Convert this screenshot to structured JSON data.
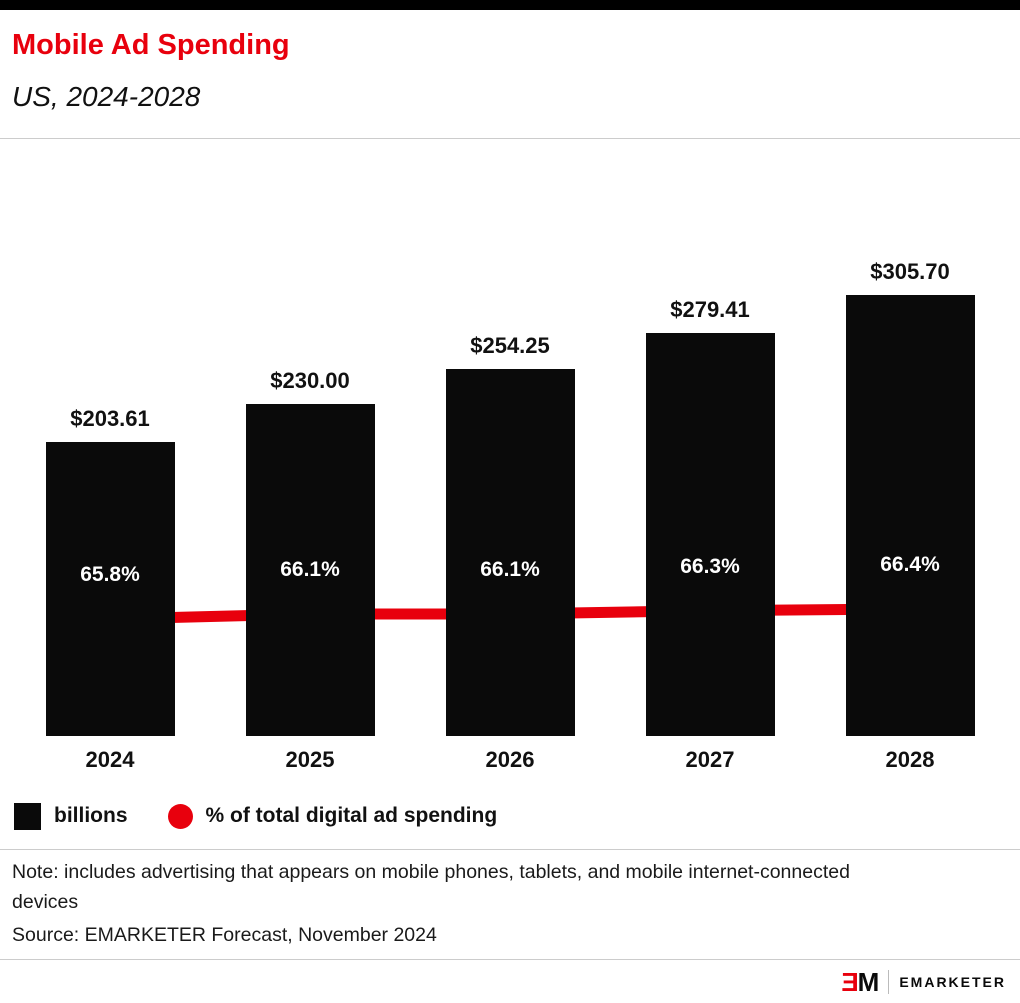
{
  "header": {
    "title": "Mobile Ad Spending",
    "subtitle": "US, 2024-2028"
  },
  "chart_data": {
    "type": "bar",
    "title": "Mobile Ad Spending",
    "subtitle": "US, 2024-2028",
    "categories": [
      "2024",
      "2025",
      "2026",
      "2027",
      "2028"
    ],
    "series": [
      {
        "name": "billions",
        "type": "bar",
        "color": "#0a0a0a",
        "values": [
          203.61,
          230.0,
          254.25,
          279.41,
          305.7
        ],
        "labels": [
          "$203.61",
          "$230.00",
          "$254.25",
          "$279.41",
          "$305.70"
        ]
      },
      {
        "name": "% of total digital ad spending",
        "type": "line",
        "color": "#e8000d",
        "values": [
          65.8,
          66.1,
          66.1,
          66.3,
          66.4
        ],
        "labels": [
          "65.8%",
          "66.1%",
          "66.1%",
          "66.3%",
          "66.4%"
        ]
      }
    ],
    "xlabel": "",
    "ylabel": "",
    "ylim_bar": [
      0,
      340
    ],
    "grid": false,
    "legend_position": "bottom-left"
  },
  "legend": {
    "items": [
      {
        "label": "billions",
        "swatch": "square",
        "color": "#0a0a0a"
      },
      {
        "label": "% of total digital ad spending",
        "swatch": "circle",
        "color": "#e8000d"
      }
    ]
  },
  "notes": {
    "note": "Note: includes advertising that appears on mobile phones, tablets, and mobile internet-connected devices",
    "source": "Source: EMARKETER Forecast, November 2024"
  },
  "footer": {
    "logo_e": "Ǝ",
    "logo_m": "M",
    "brand": "EMARKETER"
  },
  "colors": {
    "accent": "#e8000d",
    "bar": "#0a0a0a",
    "divider": "#cccccc"
  }
}
